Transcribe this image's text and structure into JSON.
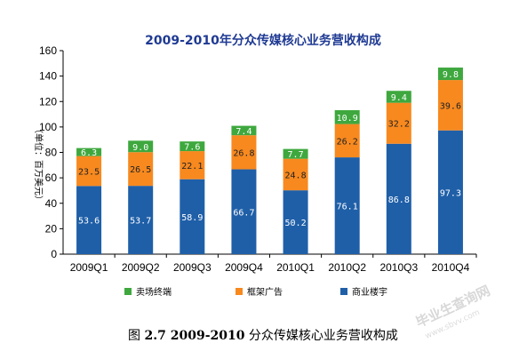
{
  "chart_data": {
    "type": "bar",
    "stacked": true,
    "title": "2009-2010年分众传媒核心业务营收构成",
    "ylabel": "（单位：百万美元）",
    "xlabel": "",
    "ylim": [
      0,
      160
    ],
    "yticks": [
      0,
      20,
      40,
      60,
      80,
      100,
      120,
      140,
      160
    ],
    "categories": [
      "2009Q1",
      "2009Q2",
      "2009Q3",
      "2009Q4",
      "2010Q1",
      "2010Q2",
      "2010Q3",
      "2010Q4"
    ],
    "series": [
      {
        "name": "商业楼宇",
        "color": "#1f5fa8",
        "values": [
          53.6,
          53.7,
          58.9,
          66.7,
          50.2,
          76.1,
          86.8,
          97.3
        ]
      },
      {
        "name": "框架广告",
        "color": "#f7891f",
        "values": [
          23.5,
          26.5,
          22.1,
          26.8,
          24.8,
          26.2,
          32.2,
          39.6
        ]
      },
      {
        "name": "卖场终端",
        "color": "#3ea83e",
        "values": [
          6.3,
          9.0,
          7.6,
          7.4,
          7.7,
          10.9,
          9.4,
          9.8
        ]
      }
    ],
    "value_labels": [
      [
        "53.6",
        "53.7",
        "58.9",
        "66.7",
        "50.2",
        "76.1",
        "86.8",
        "97.3"
      ],
      [
        "23.5",
        "26.5",
        "22.1",
        "26.8",
        "24.8",
        "26.2",
        "32.2",
        "39.6"
      ],
      [
        "6.3",
        "9.0",
        "7.6",
        "7.4",
        "7.7",
        "10.9",
        "9.4",
        "9.8"
      ]
    ],
    "legend": {
      "placement": "bottom",
      "order": [
        "卖场终端",
        "框架广告",
        "商业楼宇"
      ]
    },
    "grid": false
  },
  "caption": {
    "prefix": "图 ",
    "number": "2.7 2009-2010",
    "text": " 分众传媒核心业务营收构成"
  },
  "watermark": {
    "main": "毕业生查询网",
    "sub": "www.sbvv.com"
  }
}
